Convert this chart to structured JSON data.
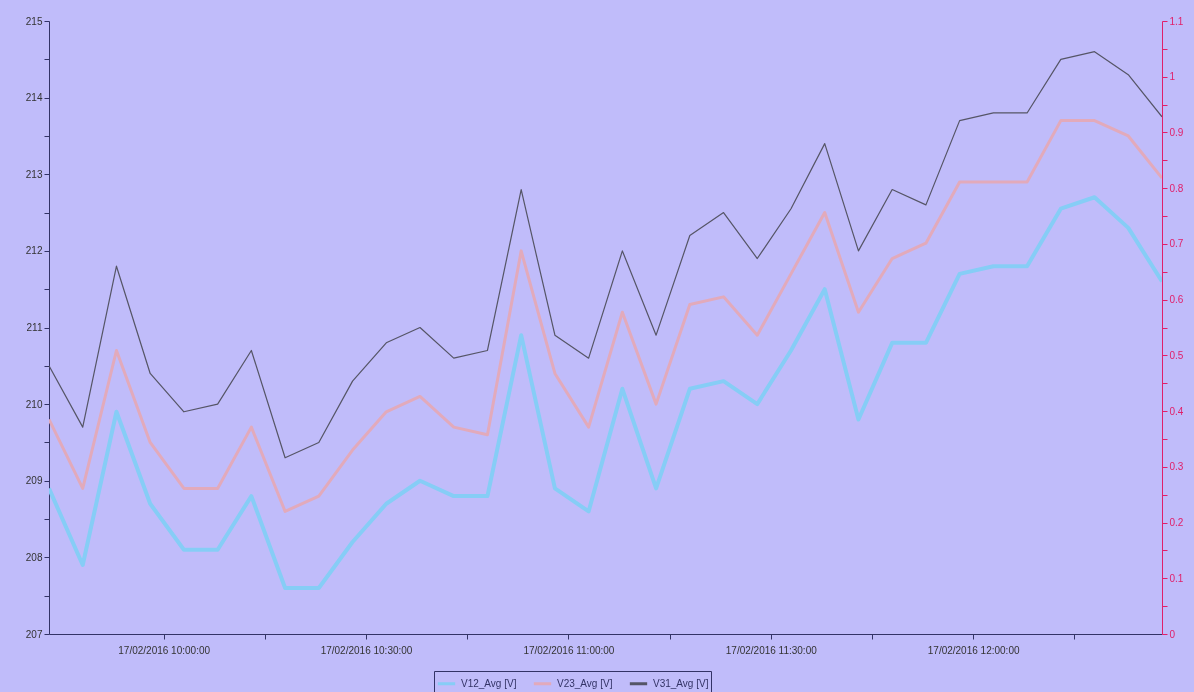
{
  "chart_data": {
    "type": "line",
    "x": [
      "2016-02-17T09:43",
      "2016-02-17T09:48",
      "2016-02-17T09:53",
      "2016-02-17T09:58",
      "2016-02-17T10:03",
      "2016-02-17T10:08",
      "2016-02-17T10:13",
      "2016-02-17T10:18",
      "2016-02-17T10:23",
      "2016-02-17T10:28",
      "2016-02-17T10:33",
      "2016-02-17T10:38",
      "2016-02-17T10:43",
      "2016-02-17T10:48",
      "2016-02-17T10:53",
      "2016-02-17T10:58",
      "2016-02-17T11:03",
      "2016-02-17T11:08",
      "2016-02-17T11:13",
      "2016-02-17T11:18",
      "2016-02-17T11:23",
      "2016-02-17T11:28",
      "2016-02-17T11:33",
      "2016-02-17T11:38",
      "2016-02-17T11:43",
      "2016-02-17T11:48",
      "2016-02-17T11:53",
      "2016-02-17T11:58",
      "2016-02-17T12:03",
      "2016-02-17T12:08",
      "2016-02-17T12:13",
      "2016-02-17T12:18",
      "2016-02-17T12:23",
      "2016-02-17T12:28"
    ],
    "series": [
      {
        "name": "V12_Avg [V]",
        "color": "#86cdf6",
        "values": [
          208.9,
          207.9,
          209.9,
          208.7,
          208.1,
          208.1,
          208.8,
          207.6,
          207.6,
          208.2,
          208.7,
          209.0,
          208.8,
          208.8,
          210.9,
          208.9,
          208.6,
          210.2,
          208.9,
          210.2,
          210.3,
          210.0,
          210.7,
          211.5,
          209.8,
          210.8,
          210.8,
          211.7,
          211.8,
          211.8,
          212.55,
          212.7,
          212.3,
          211.6
        ]
      },
      {
        "name": "V23_Avg [V]",
        "color": "#e2aabb",
        "values": [
          209.8,
          208.9,
          210.7,
          209.5,
          208.9,
          208.9,
          209.7,
          208.6,
          208.8,
          209.4,
          209.9,
          210.1,
          209.7,
          209.6,
          212.0,
          210.4,
          209.7,
          211.2,
          210.0,
          211.3,
          211.4,
          210.9,
          211.7,
          212.5,
          211.2,
          211.9,
          212.1,
          212.9,
          212.9,
          212.9,
          213.7,
          213.7,
          213.5,
          212.95
        ]
      },
      {
        "name": "V31_Avg [V]",
        "color": "#555566",
        "values": [
          210.5,
          209.7,
          211.8,
          210.4,
          209.9,
          210.0,
          210.7,
          209.3,
          209.5,
          210.3,
          210.8,
          211.0,
          210.6,
          210.7,
          212.8,
          210.9,
          210.6,
          212.0,
          210.9,
          212.2,
          212.5,
          211.9,
          212.55,
          213.4,
          212.0,
          212.8,
          212.6,
          213.7,
          213.8,
          213.8,
          214.5,
          214.6,
          214.3,
          213.75
        ]
      }
    ],
    "xlim": [
      "2016-02-17T09:43",
      "2016-02-17T12:28"
    ],
    "xticks": [
      {
        "value": "2016-02-17T10:00",
        "label": "17/02/2016 10:00:00"
      },
      {
        "value": "2016-02-17T10:15",
        "label": null
      },
      {
        "value": "2016-02-17T10:30",
        "label": "17/02/2016 10:30:00"
      },
      {
        "value": "2016-02-17T10:45",
        "label": null
      },
      {
        "value": "2016-02-17T11:00",
        "label": "17/02/2016 11:00:00"
      },
      {
        "value": "2016-02-17T11:15",
        "label": null
      },
      {
        "value": "2016-02-17T11:30",
        "label": "17/02/2016 11:30:00"
      },
      {
        "value": "2016-02-17T11:45",
        "label": null
      },
      {
        "value": "2016-02-17T12:00",
        "label": "17/02/2016 12:00:00"
      },
      {
        "value": "2016-02-17T12:15",
        "label": null
      }
    ],
    "ylim": [
      207,
      215
    ],
    "yticks": [
      207,
      {
        "value": 207.5,
        "label": null
      },
      208,
      {
        "value": 208.5,
        "label": null
      },
      209,
      {
        "value": 209.5,
        "label": null
      },
      210,
      {
        "value": 210.5,
        "label": null
      },
      211,
      {
        "value": 211.5,
        "label": null
      },
      212,
      {
        "value": 212.5,
        "label": null
      },
      213,
      {
        "value": 213.5,
        "label": null
      },
      214,
      {
        "value": 214.5,
        "label": null
      },
      215
    ],
    "y2lim": [
      0,
      1.1
    ],
    "y2ticks": [
      0,
      {
        "value": 0.05,
        "label": null
      },
      0.1,
      {
        "value": 0.15,
        "label": null
      },
      0.2,
      {
        "value": 0.25,
        "label": null
      },
      0.3,
      {
        "value": 0.35,
        "label": null
      },
      0.4,
      {
        "value": 0.45,
        "label": null
      },
      0.5,
      {
        "value": 0.55,
        "label": null
      },
      0.6,
      {
        "value": 0.65,
        "label": null
      },
      0.7,
      {
        "value": 0.75,
        "label": null
      },
      0.8,
      {
        "value": 0.85,
        "label": null
      },
      0.9,
      {
        "value": 0.95,
        "label": null
      },
      1,
      {
        "value": 1.05,
        "label": null
      },
      1.1
    ],
    "grid": false,
    "legend": "bottom",
    "marker": "none",
    "line_style": "solid"
  }
}
